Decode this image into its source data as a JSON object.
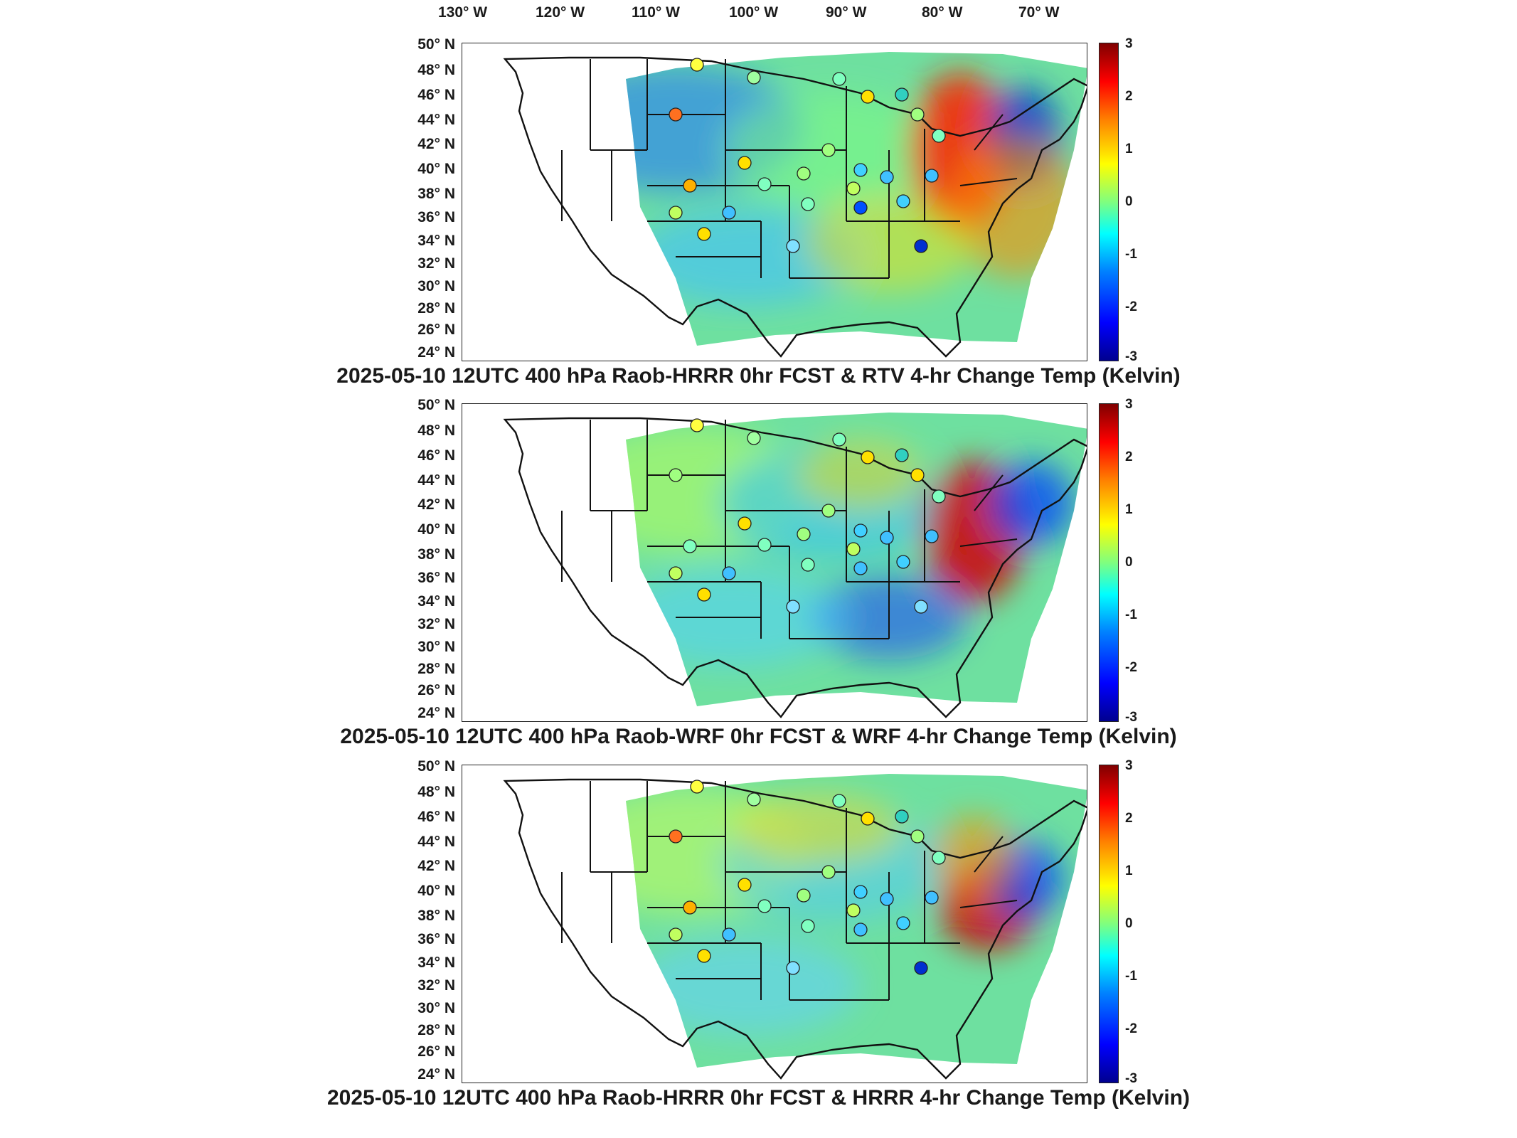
{
  "longitude_labels": [
    "130° W",
    "120° W",
    "110° W",
    "100° W",
    "90° W",
    "80° W",
    "70° W"
  ],
  "latitude_labels": [
    "50° N",
    "48° N",
    "46° N",
    "44° N",
    "42° N",
    "40° N",
    "38° N",
    "36° N",
    "34° N",
    "32° N",
    "30° N",
    "28° N",
    "26° N",
    "24° N"
  ],
  "colorbar": {
    "ticks": [
      "3",
      "2",
      "1",
      "0",
      "-1",
      "-2",
      "-3"
    ],
    "colors": [
      "#00008f",
      "#0000ff",
      "#0080ff",
      "#00ffff",
      "#7fff7f",
      "#ffff00",
      "#ff8000",
      "#ff0000",
      "#800000"
    ]
  },
  "panels": [
    {
      "title": "2025-05-10 12UTC 400 hPa Raob-HRRR 0hr FCST & RTV 4-hr Change Temp (Kelvin)"
    },
    {
      "title": "2025-05-10 12UTC 400 hPa Raob-WRF 0hr FCST & WRF 4-hr Change Temp (Kelvin)"
    },
    {
      "title": "2025-05-10 12UTC 400 hPa Raob-HRRR 0hr FCST & HRRR 4-hr Change Temp (Kelvin)"
    }
  ]
}
